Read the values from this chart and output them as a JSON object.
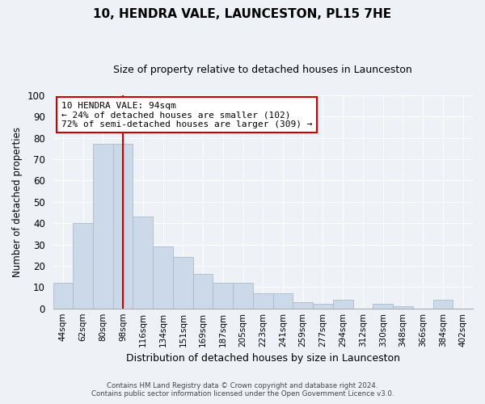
{
  "title": "10, HENDRA VALE, LAUNCESTON, PL15 7HE",
  "subtitle": "Size of property relative to detached houses in Launceston",
  "xlabel": "Distribution of detached houses by size in Launceston",
  "ylabel": "Number of detached properties",
  "bar_labels": [
    "44sqm",
    "62sqm",
    "80sqm",
    "98sqm",
    "116sqm",
    "134sqm",
    "151sqm",
    "169sqm",
    "187sqm",
    "205sqm",
    "223sqm",
    "241sqm",
    "259sqm",
    "277sqm",
    "294sqm",
    "312sqm",
    "330sqm",
    "348sqm",
    "366sqm",
    "384sqm",
    "402sqm"
  ],
  "bar_values": [
    12,
    40,
    77,
    77,
    43,
    29,
    24,
    16,
    12,
    12,
    7,
    7,
    3,
    2,
    4,
    0,
    2,
    1,
    0,
    4,
    0
  ],
  "bar_color": "#ccd9e8",
  "bar_edge_color": "#aabcce",
  "vline_x_index": 3,
  "vline_color": "#cc0000",
  "annotation_text": "10 HENDRA VALE: 94sqm\n← 24% of detached houses are smaller (102)\n72% of semi-detached houses are larger (309) →",
  "annotation_box_color": "#ffffff",
  "annotation_box_edge": "#cc0000",
  "ylim": [
    0,
    100
  ],
  "yticks": [
    0,
    10,
    20,
    30,
    40,
    50,
    60,
    70,
    80,
    90,
    100
  ],
  "footer_line1": "Contains HM Land Registry data © Crown copyright and database right 2024.",
  "footer_line2": "Contains public sector information licensed under the Open Government Licence v3.0.",
  "bg_color": "#eef2f7",
  "grid_color": "#ffffff",
  "title_fontsize": 11,
  "subtitle_fontsize": 9
}
